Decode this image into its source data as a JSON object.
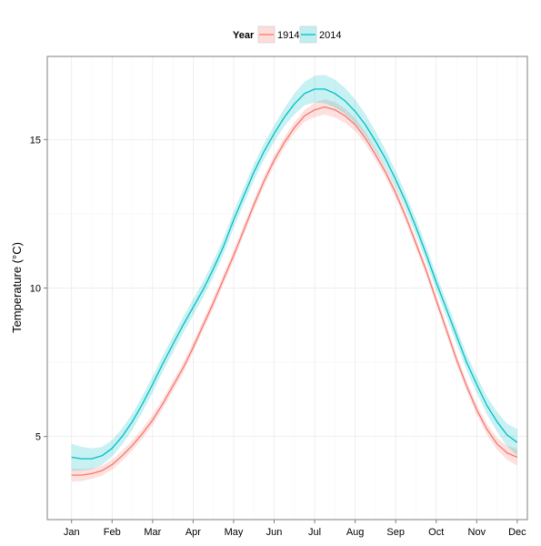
{
  "chart_data": {
    "type": "line",
    "title": "",
    "xlabel": "",
    "ylabel": "Temperature (°C)",
    "legend": {
      "title": "Year",
      "position": "top"
    },
    "x_ticks": [
      "Jan",
      "Feb",
      "Mar",
      "Apr",
      "May",
      "Jun",
      "Jul",
      "Aug",
      "Sep",
      "Oct",
      "Nov",
      "Dec"
    ],
    "y_ticks": [
      5,
      10,
      15
    ],
    "xlim": [
      0.4,
      12.25
    ],
    "ylim": [
      2.2,
      17.8
    ],
    "grid": true,
    "confidence_band": true,
    "series": [
      {
        "name": "1914",
        "color": "#F8766D",
        "band_color": "#F8766D",
        "x": [
          1,
          1.25,
          1.5,
          1.75,
          2,
          2.25,
          2.5,
          2.75,
          3,
          3.25,
          3.5,
          3.75,
          4,
          4.25,
          4.5,
          4.75,
          5,
          5.25,
          5.5,
          5.75,
          6,
          6.25,
          6.5,
          6.75,
          7,
          7.25,
          7.5,
          7.75,
          8,
          8.25,
          8.5,
          8.75,
          9,
          9.25,
          9.5,
          9.75,
          10,
          10.25,
          10.5,
          10.75,
          11,
          11.25,
          11.5,
          11.75,
          12
        ],
        "y": [
          3.7,
          3.7,
          3.75,
          3.85,
          4.05,
          4.35,
          4.7,
          5.1,
          5.55,
          6.1,
          6.7,
          7.3,
          8.0,
          8.75,
          9.5,
          10.3,
          11.1,
          11.95,
          12.8,
          13.6,
          14.3,
          14.9,
          15.4,
          15.8,
          16.0,
          16.1,
          16.0,
          15.8,
          15.5,
          15.05,
          14.5,
          13.9,
          13.2,
          12.4,
          11.5,
          10.6,
          9.6,
          8.6,
          7.6,
          6.7,
          5.9,
          5.25,
          4.75,
          4.45,
          4.3
        ],
        "band_halfwidth": [
          0.22,
          0.2,
          0.18,
          0.17,
          0.17,
          0.17,
          0.17,
          0.17,
          0.17,
          0.17,
          0.17,
          0.17,
          0.17,
          0.17,
          0.17,
          0.17,
          0.17,
          0.17,
          0.17,
          0.17,
          0.17,
          0.17,
          0.18,
          0.2,
          0.24,
          0.26,
          0.26,
          0.24,
          0.22,
          0.2,
          0.18,
          0.17,
          0.17,
          0.17,
          0.17,
          0.17,
          0.17,
          0.17,
          0.17,
          0.17,
          0.17,
          0.18,
          0.2,
          0.24,
          0.28
        ]
      },
      {
        "name": "2014",
        "color": "#00BFC4",
        "band_color": "#00BFC4",
        "x": [
          1,
          1.25,
          1.5,
          1.75,
          2,
          2.25,
          2.5,
          2.75,
          3,
          3.25,
          3.5,
          3.75,
          4,
          4.25,
          4.5,
          4.75,
          5,
          5.25,
          5.5,
          5.75,
          6,
          6.25,
          6.5,
          6.75,
          7,
          7.25,
          7.5,
          7.75,
          8,
          8.25,
          8.5,
          8.75,
          9,
          9.25,
          9.5,
          9.75,
          10,
          10.25,
          10.5,
          10.75,
          11,
          11.25,
          11.5,
          11.75,
          12
        ],
        "y": [
          4.3,
          4.25,
          4.25,
          4.35,
          4.6,
          5.0,
          5.5,
          6.1,
          6.75,
          7.45,
          8.1,
          8.75,
          9.35,
          9.95,
          10.65,
          11.4,
          12.3,
          13.1,
          13.9,
          14.6,
          15.2,
          15.75,
          16.2,
          16.55,
          16.7,
          16.7,
          16.55,
          16.3,
          15.95,
          15.5,
          14.95,
          14.35,
          13.65,
          12.9,
          12.05,
          11.15,
          10.2,
          9.3,
          8.4,
          7.5,
          6.75,
          6.05,
          5.5,
          5.05,
          4.8
        ],
        "band_halfwidth": [
          0.45,
          0.4,
          0.35,
          0.3,
          0.28,
          0.27,
          0.27,
          0.27,
          0.27,
          0.27,
          0.27,
          0.27,
          0.27,
          0.27,
          0.27,
          0.27,
          0.27,
          0.27,
          0.27,
          0.27,
          0.28,
          0.3,
          0.35,
          0.4,
          0.45,
          0.48,
          0.47,
          0.44,
          0.4,
          0.36,
          0.33,
          0.3,
          0.28,
          0.27,
          0.27,
          0.27,
          0.27,
          0.27,
          0.27,
          0.27,
          0.28,
          0.3,
          0.33,
          0.38,
          0.45
        ]
      }
    ]
  }
}
